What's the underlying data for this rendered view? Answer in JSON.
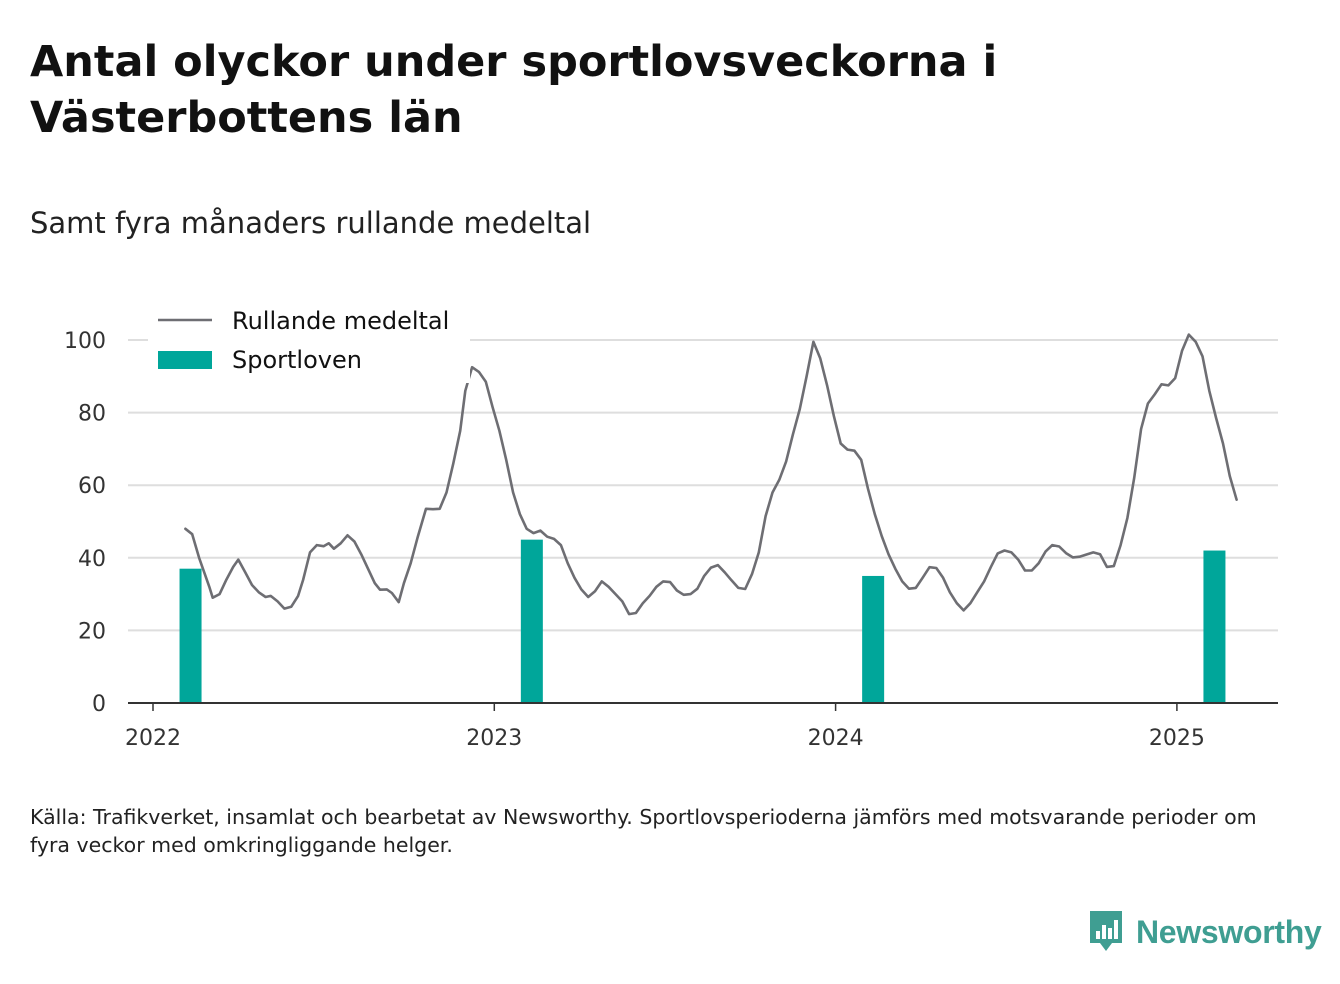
{
  "title": "Antal olyckor under sportlovsveckorna i Västerbottens län",
  "subtitle": "Samt fyra månaders rullande medeltal",
  "footnote": "Källa: Trafikverket, insamlat och bearbetat av Newsworthy. Sportlovsperioderna jämförs med motsvarande perioder om fyra veckor med omkringliggande helger.",
  "brand": "Newsworthy",
  "colors": {
    "line": "#6e6e73",
    "bar": "#00a69a",
    "grid": "#dedede",
    "axis": "#333333",
    "brand": "#3f9e92"
  },
  "chart_data": {
    "type": "bar+line",
    "x_ticks": [
      "2022",
      "2023",
      "2024",
      "2025"
    ],
    "ylim": [
      0,
      100
    ],
    "y_ticks": [
      0,
      20,
      40,
      60,
      80,
      100
    ],
    "grid": "horizontal",
    "legend_position": "top-left",
    "legend": [
      {
        "label": "Rullande medeltal",
        "kind": "line"
      },
      {
        "label": "Sportloven",
        "kind": "bar"
      }
    ],
    "bars": {
      "name": "Sportloven",
      "points": [
        {
          "x": 2022.11,
          "value": 37
        },
        {
          "x": 2023.11,
          "value": 45
        },
        {
          "x": 2024.11,
          "value": 35
        },
        {
          "x": 2025.11,
          "value": 42
        }
      ]
    },
    "line": {
      "name": "Rullande medeltal",
      "points": [
        [
          2022.095,
          48
        ],
        [
          2022.115,
          46.5
        ],
        [
          2022.135,
          40
        ],
        [
          2022.15,
          36
        ],
        [
          2022.165,
          32
        ],
        [
          2022.175,
          29
        ],
        [
          2022.195,
          30
        ],
        [
          2022.215,
          34
        ],
        [
          2022.235,
          37.5
        ],
        [
          2022.25,
          39.5
        ],
        [
          2022.27,
          36
        ],
        [
          2022.29,
          32.5
        ],
        [
          2022.31,
          30.5
        ],
        [
          2022.33,
          29.2
        ],
        [
          2022.345,
          29.5
        ],
        [
          2022.365,
          28
        ],
        [
          2022.385,
          26
        ],
        [
          2022.405,
          26.5
        ],
        [
          2022.425,
          29.5
        ],
        [
          2022.44,
          34
        ],
        [
          2022.46,
          41.5
        ],
        [
          2022.48,
          43.5
        ],
        [
          2022.5,
          43.2
        ],
        [
          2022.515,
          44
        ],
        [
          2022.53,
          42.5
        ],
        [
          2022.55,
          44
        ],
        [
          2022.57,
          46.2
        ],
        [
          2022.59,
          44.5
        ],
        [
          2022.61,
          41
        ],
        [
          2022.63,
          37
        ],
        [
          2022.65,
          33
        ],
        [
          2022.665,
          31.2
        ],
        [
          2022.685,
          31.3
        ],
        [
          2022.7,
          30.3
        ],
        [
          2022.72,
          27.8
        ],
        [
          2022.735,
          33
        ],
        [
          2022.755,
          38.5
        ],
        [
          2022.775,
          45.5
        ],
        [
          2022.8,
          53.5
        ],
        [
          2022.82,
          53.4
        ],
        [
          2022.84,
          53.5
        ],
        [
          2022.86,
          58
        ],
        [
          2022.88,
          66
        ],
        [
          2022.9,
          75
        ],
        [
          2022.915,
          86
        ],
        [
          2022.935,
          92.5
        ],
        [
          2022.955,
          91.2
        ],
        [
          2022.975,
          88.5
        ],
        [
          2022.995,
          81.5
        ],
        [
          2023.015,
          75
        ],
        [
          2023.035,
          67
        ],
        [
          2023.055,
          58
        ],
        [
          2023.075,
          52
        ],
        [
          2023.095,
          48
        ],
        [
          2023.115,
          46.8
        ],
        [
          2023.135,
          47.5
        ],
        [
          2023.155,
          45.8
        ],
        [
          2023.175,
          45.2
        ],
        [
          2023.195,
          43.5
        ],
        [
          2023.215,
          38.5
        ],
        [
          2023.235,
          34.5
        ],
        [
          2023.255,
          31.3
        ],
        [
          2023.275,
          29.2
        ],
        [
          2023.295,
          30.8
        ],
        [
          2023.315,
          33.5
        ],
        [
          2023.335,
          32
        ],
        [
          2023.355,
          30
        ],
        [
          2023.375,
          28
        ],
        [
          2023.395,
          24.5
        ],
        [
          2023.415,
          24.8
        ],
        [
          2023.435,
          27.5
        ],
        [
          2023.455,
          29.5
        ],
        [
          2023.475,
          32
        ],
        [
          2023.495,
          33.5
        ],
        [
          2023.515,
          33.3
        ],
        [
          2023.535,
          31
        ],
        [
          2023.555,
          29.8
        ],
        [
          2023.575,
          30
        ],
        [
          2023.595,
          31.5
        ],
        [
          2023.615,
          35
        ],
        [
          2023.635,
          37.3
        ],
        [
          2023.655,
          38
        ],
        [
          2023.675,
          36
        ],
        [
          2023.695,
          33.8
        ],
        [
          2023.715,
          31.7
        ],
        [
          2023.735,
          31.4
        ],
        [
          2023.755,
          35.5
        ],
        [
          2023.775,
          41.5
        ],
        [
          2023.795,
          51.5
        ],
        [
          2023.815,
          58
        ],
        [
          2023.835,
          61.5
        ],
        [
          2023.855,
          66.5
        ],
        [
          2023.875,
          74
        ],
        [
          2023.895,
          81
        ],
        [
          2023.915,
          90
        ],
        [
          2023.935,
          99.5
        ],
        [
          2023.955,
          95
        ],
        [
          2023.975,
          87.5
        ],
        [
          2023.995,
          79
        ],
        [
          2024.015,
          71.5
        ],
        [
          2024.035,
          69.8
        ],
        [
          2024.055,
          69.5
        ],
        [
          2024.075,
          67
        ],
        [
          2024.095,
          59
        ],
        [
          2024.115,
          52
        ],
        [
          2024.135,
          46
        ],
        [
          2024.155,
          41
        ],
        [
          2024.175,
          37
        ],
        [
          2024.195,
          33.5
        ],
        [
          2024.215,
          31.5
        ],
        [
          2024.235,
          31.7
        ],
        [
          2024.255,
          34.5
        ],
        [
          2024.275,
          37.4
        ],
        [
          2024.295,
          37.2
        ],
        [
          2024.315,
          34.5
        ],
        [
          2024.335,
          30.5
        ],
        [
          2024.355,
          27.5
        ],
        [
          2024.375,
          25.5
        ],
        [
          2024.395,
          27.5
        ],
        [
          2024.415,
          30.5
        ],
        [
          2024.435,
          33.5
        ],
        [
          2024.455,
          37.5
        ],
        [
          2024.475,
          41.2
        ],
        [
          2024.495,
          42
        ],
        [
          2024.515,
          41.5
        ],
        [
          2024.535,
          39.5
        ],
        [
          2024.555,
          36.5
        ],
        [
          2024.575,
          36.5
        ],
        [
          2024.595,
          38.5
        ],
        [
          2024.615,
          41.7
        ],
        [
          2024.635,
          43.5
        ],
        [
          2024.655,
          43.1
        ],
        [
          2024.675,
          41.3
        ],
        [
          2024.695,
          40.1
        ],
        [
          2024.715,
          40.3
        ],
        [
          2024.735,
          40.9
        ],
        [
          2024.755,
          41.5
        ],
        [
          2024.775,
          41
        ],
        [
          2024.795,
          37.5
        ],
        [
          2024.815,
          37.7
        ],
        [
          2024.835,
          43.5
        ],
        [
          2024.855,
          51
        ],
        [
          2024.875,
          62
        ],
        [
          2024.895,
          75.5
        ],
        [
          2024.915,
          82.5
        ],
        [
          2024.935,
          85
        ],
        [
          2024.955,
          87.8
        ],
        [
          2024.975,
          87.5
        ],
        [
          2024.995,
          89.5
        ],
        [
          2025.015,
          97
        ],
        [
          2025.035,
          101.5
        ],
        [
          2025.055,
          99.5
        ],
        [
          2025.075,
          95.5
        ],
        [
          2025.095,
          86
        ],
        [
          2025.115,
          78.5
        ],
        [
          2025.135,
          71.5
        ],
        [
          2025.155,
          62.5
        ],
        [
          2025.175,
          56
        ]
      ]
    }
  }
}
